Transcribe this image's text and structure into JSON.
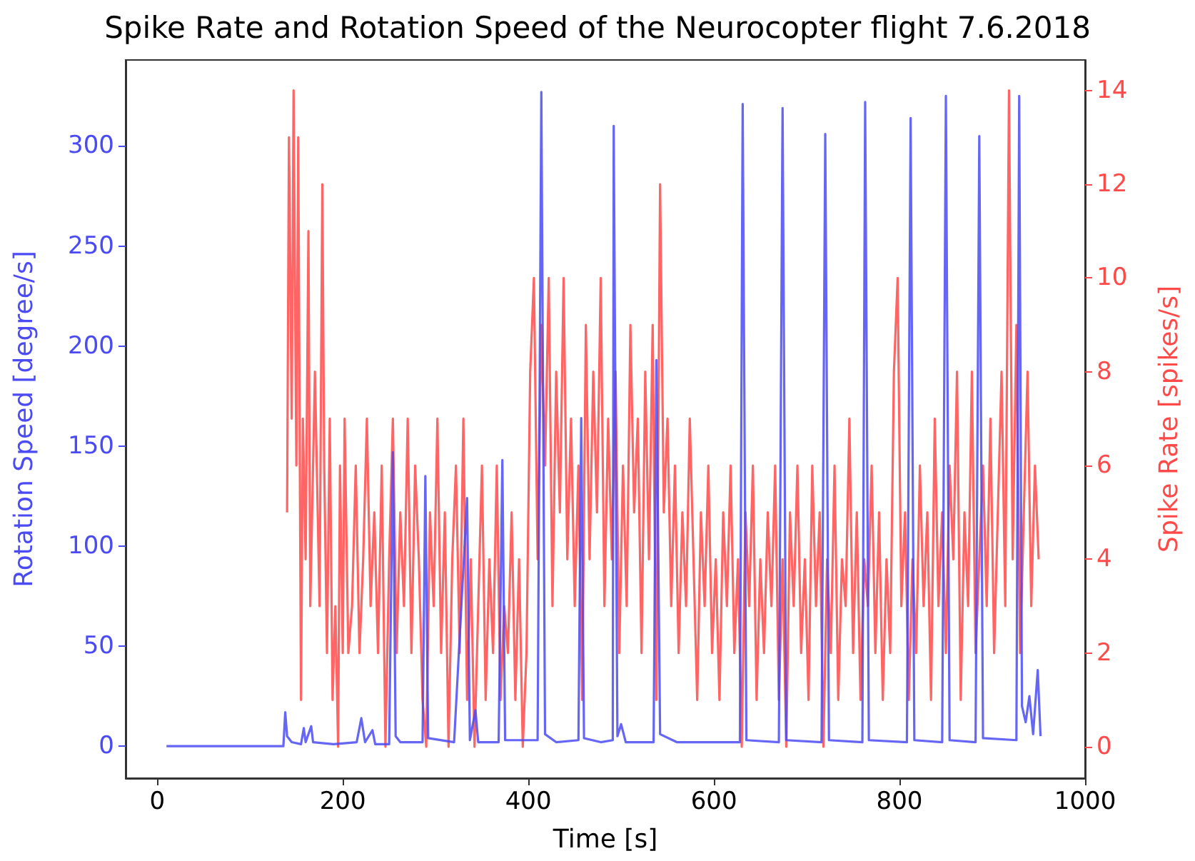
{
  "chart_data": {
    "type": "line",
    "title": "Spike Rate and Rotation Speed of the Neurocopter flight 7.6.2018",
    "xlabel": "Time [s]",
    "ylabel": "Rotation Speed [degree/s]",
    "y2label": "Spike Rate [spikes/s]",
    "xlim": [
      -34,
      1000
    ],
    "xticks": [
      0,
      200,
      400,
      600,
      800,
      1000
    ],
    "ylim": [
      -16,
      343
    ],
    "yticks": [
      0,
      50,
      100,
      150,
      200,
      250,
      300
    ],
    "y2lim": [
      -0.67,
      14.65
    ],
    "y2ticks": [
      0,
      2,
      4,
      6,
      8,
      10,
      12,
      14
    ],
    "grid": false,
    "marker": "none",
    "line_style": "solid",
    "series": [
      {
        "color": "#4b4bf5",
        "x": [
          10,
          136,
          138,
          140,
          145,
          155,
          158,
          160,
          166,
          168,
          190,
          215,
          220,
          224,
          232,
          235,
          250,
          254,
          257,
          262,
          286,
          289,
          292,
          320,
          334,
          337,
          343,
          346,
          368,
          372,
          375,
          410,
          414,
          418,
          430,
          454,
          457,
          460,
          478,
          491,
          492,
          496,
          500,
          505,
          535,
          538,
          542,
          560,
          600,
          628,
          631,
          635,
          670,
          674,
          678,
          716,
          720,
          724,
          760,
          763,
          767,
          808,
          812,
          816,
          846,
          850,
          854,
          882,
          886,
          890,
          926,
          929,
          932,
          936,
          940,
          944,
          949,
          952
        ],
        "values": [
          0,
          0,
          17,
          5,
          2,
          1,
          9,
          2,
          10,
          2,
          1,
          2,
          14,
          2,
          8,
          1,
          1,
          147,
          5,
          2,
          2,
          135,
          4,
          2,
          124,
          3,
          18,
          2,
          2,
          143,
          3,
          3,
          327,
          6,
          2,
          3,
          164,
          4,
          2,
          3,
          310,
          5,
          11,
          2,
          2,
          193,
          6,
          2,
          2,
          2,
          321,
          3,
          2,
          319,
          3,
          2,
          306,
          3,
          2,
          322,
          3,
          2,
          314,
          3,
          2,
          325,
          3,
          2,
          305,
          4,
          3,
          325,
          20,
          12,
          25,
          6,
          38,
          5
        ]
      },
      {
        "color": "#ff4a4a",
        "axis": "y2",
        "x": [
          140,
          142,
          145,
          147,
          150,
          152,
          155,
          157,
          160,
          163,
          165,
          168,
          170,
          173,
          175,
          178,
          180,
          183,
          186,
          189,
          192,
          195,
          197,
          200,
          202,
          206,
          210,
          214,
          218,
          222,
          226,
          230,
          234,
          238,
          242,
          246,
          250,
          254,
          258,
          262,
          266,
          270,
          274,
          278,
          282,
          286,
          290,
          294,
          298,
          302,
          306,
          310,
          314,
          318,
          322,
          326,
          330,
          334,
          338,
          342,
          346,
          350,
          354,
          358,
          362,
          366,
          370,
          374,
          378,
          382,
          386,
          390,
          394,
          398,
          402,
          406,
          410,
          414,
          418,
          422,
          426,
          430,
          434,
          438,
          442,
          446,
          450,
          454,
          458,
          462,
          466,
          470,
          474,
          478,
          482,
          486,
          490,
          494,
          498,
          502,
          506,
          510,
          514,
          518,
          522,
          526,
          530,
          534,
          538,
          542,
          546,
          550,
          554,
          558,
          562,
          566,
          570,
          574,
          578,
          582,
          586,
          590,
          594,
          598,
          602,
          606,
          610,
          614,
          618,
          622,
          626,
          630,
          634,
          638,
          642,
          646,
          650,
          654,
          658,
          662,
          666,
          670,
          674,
          678,
          682,
          686,
          690,
          694,
          698,
          702,
          706,
          710,
          714,
          718,
          722,
          726,
          730,
          734,
          738,
          742,
          746,
          750,
          754,
          758,
          762,
          766,
          770,
          774,
          778,
          782,
          786,
          790,
          794,
          798,
          802,
          806,
          810,
          814,
          818,
          822,
          826,
          830,
          834,
          838,
          842,
          846,
          850,
          854,
          858,
          862,
          866,
          870,
          874,
          878,
          882,
          886,
          890,
          894,
          898,
          902,
          906,
          910,
          914,
          918,
          922,
          926,
          930,
          934,
          938,
          942,
          946,
          950
        ],
        "values": [
          5,
          13,
          7,
          14,
          6,
          13,
          1,
          7,
          4,
          11,
          3,
          6,
          8,
          5,
          3,
          12,
          6,
          2,
          7,
          1,
          3,
          0,
          6,
          2,
          7,
          2,
          3,
          6,
          2,
          4,
          7,
          3,
          5,
          2,
          6,
          0,
          4,
          7,
          2,
          5,
          3,
          7,
          2,
          6,
          4,
          1,
          0,
          5,
          3,
          7,
          2,
          5,
          0,
          4,
          6,
          2,
          7,
          1,
          4,
          0,
          3,
          6,
          1,
          4,
          2,
          6,
          1,
          3,
          2,
          5,
          1,
          4,
          0,
          2,
          8,
          10,
          4,
          9,
          6,
          10,
          3,
          8,
          5,
          10,
          4,
          7,
          3,
          6,
          1,
          9,
          4,
          8,
          5,
          10,
          3,
          7,
          4,
          8,
          2,
          6,
          3,
          9,
          5,
          7,
          2,
          8,
          4,
          9,
          1,
          12,
          5,
          7,
          3,
          6,
          2,
          5,
          3,
          7,
          4,
          1,
          5,
          3,
          6,
          2,
          4,
          1,
          5,
          3,
          6,
          2,
          4,
          0,
          5,
          3,
          6,
          1,
          4,
          2,
          5,
          3,
          6,
          1,
          4,
          0,
          5,
          3,
          6,
          2,
          4,
          1,
          6,
          3,
          5,
          0,
          4,
          2,
          6,
          1,
          4,
          3,
          7,
          2,
          5,
          1,
          4,
          3,
          6,
          2,
          5,
          1,
          4,
          2,
          8,
          10,
          3,
          5,
          1,
          4,
          2,
          6,
          3,
          5,
          1,
          7,
          3,
          5,
          2,
          6,
          4,
          8,
          1,
          5,
          3,
          8,
          2,
          4,
          6,
          3,
          7,
          2,
          5,
          8,
          3,
          14,
          4,
          9,
          2,
          5,
          8,
          3,
          6,
          4
        ]
      }
    ]
  }
}
